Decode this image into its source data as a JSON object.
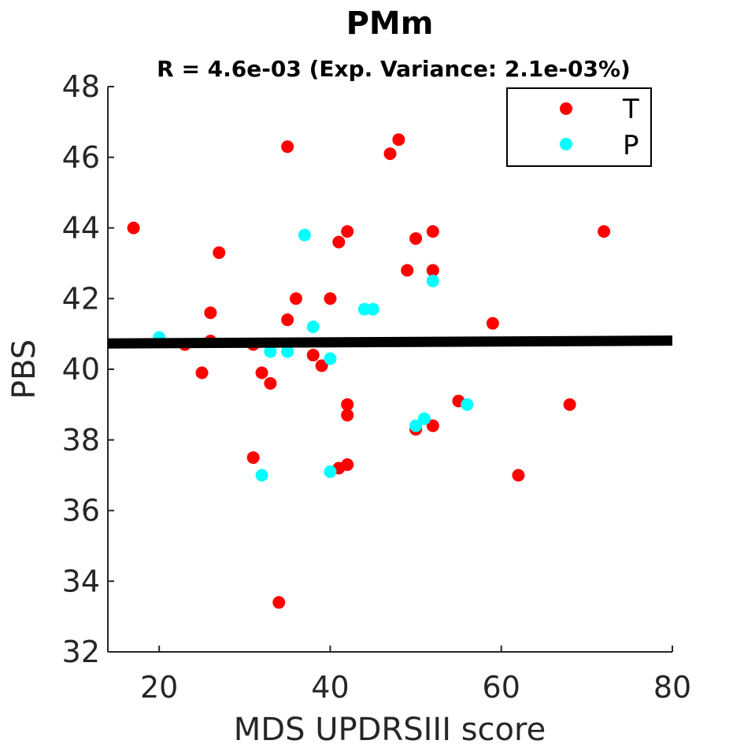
{
  "chart_data": {
    "type": "scatter",
    "title": "PMm",
    "subtitle": "R = 4.6e-03 (Exp. Variance: 2.1e-03%)",
    "xlabel": "MDS UPDRSIII score",
    "ylabel": "PBS",
    "xlim": [
      14,
      80
    ],
    "ylim": [
      32,
      48
    ],
    "xticks": [
      "20",
      "40",
      "60",
      "80"
    ],
    "yticks": [
      "32",
      "34",
      "36",
      "38",
      "40",
      "42",
      "44",
      "46",
      "48"
    ],
    "legend_position": "top-right",
    "series": [
      {
        "name": "T",
        "color": "#ff0000",
        "x": [
          17,
          23,
          25,
          26,
          26,
          27,
          31,
          31,
          32,
          33,
          34,
          35,
          35,
          36,
          38,
          39,
          40,
          41,
          41,
          42,
          42,
          42,
          42,
          47,
          48,
          49,
          50,
          50,
          52,
          52,
          52,
          55,
          59,
          62,
          68,
          72
        ],
        "y": [
          44.0,
          40.7,
          39.9,
          41.6,
          40.8,
          43.3,
          40.7,
          37.5,
          39.9,
          39.6,
          33.4,
          46.3,
          41.4,
          42.0,
          40.4,
          40.1,
          42.0,
          43.6,
          37.2,
          43.9,
          39.0,
          38.7,
          37.3,
          46.1,
          46.5,
          42.8,
          43.7,
          38.3,
          43.9,
          42.8,
          38.4,
          39.1,
          41.3,
          37.0,
          39.0,
          43.9
        ]
      },
      {
        "name": "P",
        "color": "#00ffff",
        "x": [
          20,
          32,
          33,
          35,
          37,
          38,
          40,
          40,
          44,
          45,
          50,
          51,
          52,
          56
        ],
        "y": [
          40.9,
          37.0,
          40.5,
          40.5,
          43.8,
          41.2,
          40.3,
          37.1,
          41.7,
          41.7,
          38.4,
          38.6,
          42.5,
          39.0
        ]
      }
    ],
    "fit_line": {
      "color": "#000000",
      "x": [
        14,
        80
      ],
      "y": [
        40.73,
        40.81
      ]
    }
  }
}
